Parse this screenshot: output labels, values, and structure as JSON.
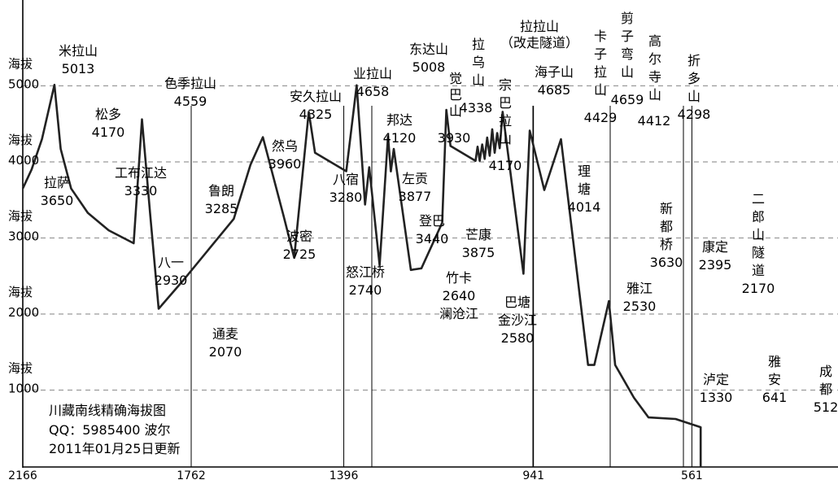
{
  "chart_data": {
    "type": "line",
    "title": "川藏南线精确海拔图",
    "info_lines": [
      "川藏南线精确海拔图",
      "QQ：5985400 波尔",
      "2011年01月25日更新"
    ],
    "y_tick_labels": [
      {
        "prefix": "海拔",
        "value": "5000",
        "level": 5000
      },
      {
        "prefix": "海拔",
        "value": "4000",
        "level": 4000
      },
      {
        "prefix": "海拔",
        "value": "3000",
        "level": 3000
      },
      {
        "prefix": "海拔",
        "value": "2000",
        "level": 2000
      },
      {
        "prefix": "海拔",
        "value": "1000",
        "level": 1000
      }
    ],
    "x_tick_labels": [
      {
        "label": "2166",
        "km": 2166
      },
      {
        "label": "1762",
        "km": 1762
      },
      {
        "label": "1396",
        "km": 1396
      },
      {
        "label": "941",
        "km": 941
      },
      {
        "label": "561",
        "km": 561
      }
    ],
    "xlim": [
      2166,
      157
    ],
    "ylim": [
      0,
      6300
    ],
    "points": [
      {
        "km": 2166,
        "elev": 3650
      },
      {
        "km": 2145,
        "elev": 3900
      },
      {
        "km": 2120,
        "elev": 4300
      },
      {
        "km": 2090,
        "elev": 5013
      },
      {
        "km": 2075,
        "elev": 4170
      },
      {
        "km": 2050,
        "elev": 3650
      },
      {
        "km": 2010,
        "elev": 3330
      },
      {
        "km": 1960,
        "elev": 3100
      },
      {
        "km": 1900,
        "elev": 2930
      },
      {
        "km": 1880,
        "elev": 4559
      },
      {
        "km": 1860,
        "elev": 3285
      },
      {
        "km": 1840,
        "elev": 2070
      },
      {
        "km": 1780,
        "elev": 2450
      },
      {
        "km": 1660,
        "elev": 3250
      },
      {
        "km": 1620,
        "elev": 3960
      },
      {
        "km": 1590,
        "elev": 4325
      },
      {
        "km": 1540,
        "elev": 3280
      },
      {
        "km": 1515,
        "elev": 2740
      },
      {
        "km": 1480,
        "elev": 4658
      },
      {
        "km": 1465,
        "elev": 4120
      },
      {
        "km": 1390,
        "elev": 3877
      },
      {
        "km": 1365,
        "elev": 5008
      },
      {
        "km": 1345,
        "elev": 3440
      },
      {
        "km": 1335,
        "elev": 3930
      },
      {
        "km": 1310,
        "elev": 2640
      },
      {
        "km": 1290,
        "elev": 4338
      },
      {
        "km": 1283,
        "elev": 3875
      },
      {
        "km": 1276,
        "elev": 4170
      },
      {
        "km": 1235,
        "elev": 2580
      },
      {
        "km": 1210,
        "elev": 2600
      },
      {
        "km": 1160,
        "elev": 3200
      },
      {
        "km": 1150,
        "elev": 4685
      },
      {
        "km": 1140,
        "elev": 4210
      },
      {
        "km": 1080,
        "elev": 4014
      },
      {
        "km": 1075,
        "elev": 4200
      },
      {
        "km": 1070,
        "elev": 4014
      },
      {
        "km": 1064,
        "elev": 4230
      },
      {
        "km": 1058,
        "elev": 4040
      },
      {
        "km": 1052,
        "elev": 4320
      },
      {
        "km": 1046,
        "elev": 4080
      },
      {
        "km": 1040,
        "elev": 4429
      },
      {
        "km": 1034,
        "elev": 4120
      },
      {
        "km": 1028,
        "elev": 4380
      },
      {
        "km": 1022,
        "elev": 4180
      },
      {
        "km": 1015,
        "elev": 4659
      },
      {
        "km": 965,
        "elev": 2530
      },
      {
        "km": 950,
        "elev": 4412
      },
      {
        "km": 915,
        "elev": 3630
      },
      {
        "km": 875,
        "elev": 4298
      },
      {
        "km": 810,
        "elev": 1330
      },
      {
        "km": 795,
        "elev": 1330
      },
      {
        "km": 760,
        "elev": 2170
      },
      {
        "km": 745,
        "elev": 1330
      },
      {
        "km": 700,
        "elev": 900
      },
      {
        "km": 665,
        "elev": 641
      },
      {
        "km": 600,
        "elev": 620
      },
      {
        "km": 540,
        "elev": 512
      }
    ],
    "place_labels": [
      {
        "id": "lasa",
        "lines": [
          "拉萨",
          "3650"
        ]
      },
      {
        "id": "milashan",
        "lines": [
          "米拉山",
          "5013"
        ]
      },
      {
        "id": "songduo",
        "lines": [
          "松多",
          "4170"
        ]
      },
      {
        "id": "gongbujiangda",
        "lines": [
          "工布江达",
          "3330"
        ]
      },
      {
        "id": "bayi",
        "lines": [
          "八一",
          "2930"
        ]
      },
      {
        "id": "sejilashan",
        "lines": [
          "色季拉山",
          "4559"
        ]
      },
      {
        "id": "lulang",
        "lines": [
          "鲁朗",
          "3285"
        ]
      },
      {
        "id": "tongmai",
        "lines": [
          "通麦",
          "2070"
        ]
      },
      {
        "id": "bomi",
        "lines": [
          "波密",
          "2725"
        ]
      },
      {
        "id": "ranwu",
        "lines": [
          "然乌",
          "3960"
        ]
      },
      {
        "id": "anjiulashan",
        "lines": [
          "安久拉山",
          "4325"
        ]
      },
      {
        "id": "basu",
        "lines": [
          "八宿",
          "3280"
        ]
      },
      {
        "id": "nujiangqiao",
        "lines": [
          "怒江桥",
          "2740"
        ]
      },
      {
        "id": "yelashan",
        "lines": [
          "业拉山",
          "4658"
        ]
      },
      {
        "id": "bangda",
        "lines": [
          "邦达",
          "4120"
        ]
      },
      {
        "id": "zuogong",
        "lines": [
          "左贡",
          "3877"
        ]
      },
      {
        "id": "dongdashan",
        "lines": [
          "东达山",
          "5008"
        ]
      },
      {
        "id": "dengba",
        "lines": [
          "登巴",
          "3440"
        ]
      },
      {
        "id": "jueba",
        "lines": [
          "觉",
          "巴",
          "山"
        ]
      },
      {
        "id": "jueba_v",
        "lines": [
          "3930"
        ]
      },
      {
        "id": "zhuka",
        "lines": [
          "竹卡",
          "2640",
          "澜沧江"
        ]
      },
      {
        "id": "lawushan",
        "lines": [
          "拉",
          "乌",
          "山"
        ]
      },
      {
        "id": "lawushan_v",
        "lines": [
          "4338"
        ]
      },
      {
        "id": "mangkang",
        "lines": [
          "芒康",
          "3875"
        ]
      },
      {
        "id": "zongbalashan",
        "lines": [
          "宗",
          "巴",
          "拉",
          "山"
        ]
      },
      {
        "id": "zongbalashan_v",
        "lines": [
          "4170"
        ]
      },
      {
        "id": "batang",
        "lines": [
          "巴塘",
          "金沙江",
          "2580"
        ]
      },
      {
        "id": "lalashan",
        "lines": [
          "拉拉山",
          "（改走隧道）"
        ]
      },
      {
        "id": "haizishan",
        "lines": [
          "海子山",
          "4685"
        ]
      },
      {
        "id": "litang",
        "lines": [
          "理",
          "塘",
          "4014"
        ]
      },
      {
        "id": "kazilashan",
        "lines": [
          "卡",
          "子",
          "拉",
          "山"
        ]
      },
      {
        "id": "kazilashan_v",
        "lines": [
          "4429"
        ]
      },
      {
        "id": "jianziwanshan",
        "lines": [
          "剪",
          "子",
          "弯",
          "山"
        ]
      },
      {
        "id": "jianziwanshan_v",
        "lines": [
          "4659"
        ]
      },
      {
        "id": "yajiang",
        "lines": [
          "雅江",
          "2530"
        ]
      },
      {
        "id": "gaoersishan",
        "lines": [
          "高",
          "尔",
          "寺",
          "山"
        ]
      },
      {
        "id": "gaoersishan_v",
        "lines": [
          "4412"
        ]
      },
      {
        "id": "xinduqiao",
        "lines": [
          "新",
          "都",
          "桥",
          "3630"
        ]
      },
      {
        "id": "zheduoshan",
        "lines": [
          "折",
          "多",
          "山",
          "4298"
        ]
      },
      {
        "id": "kangding",
        "lines": [
          "康定",
          "2395"
        ]
      },
      {
        "id": "luding",
        "lines": [
          "泸定",
          "1330"
        ]
      },
      {
        "id": "erlangshan",
        "lines": [
          "二",
          "郎",
          "山",
          "隧",
          "道",
          "2170"
        ]
      },
      {
        "id": "yaan",
        "lines": [
          "雅",
          "安",
          "641"
        ]
      },
      {
        "id": "chengdu",
        "lines": [
          "成",
          "都",
          "512"
        ]
      }
    ]
  }
}
